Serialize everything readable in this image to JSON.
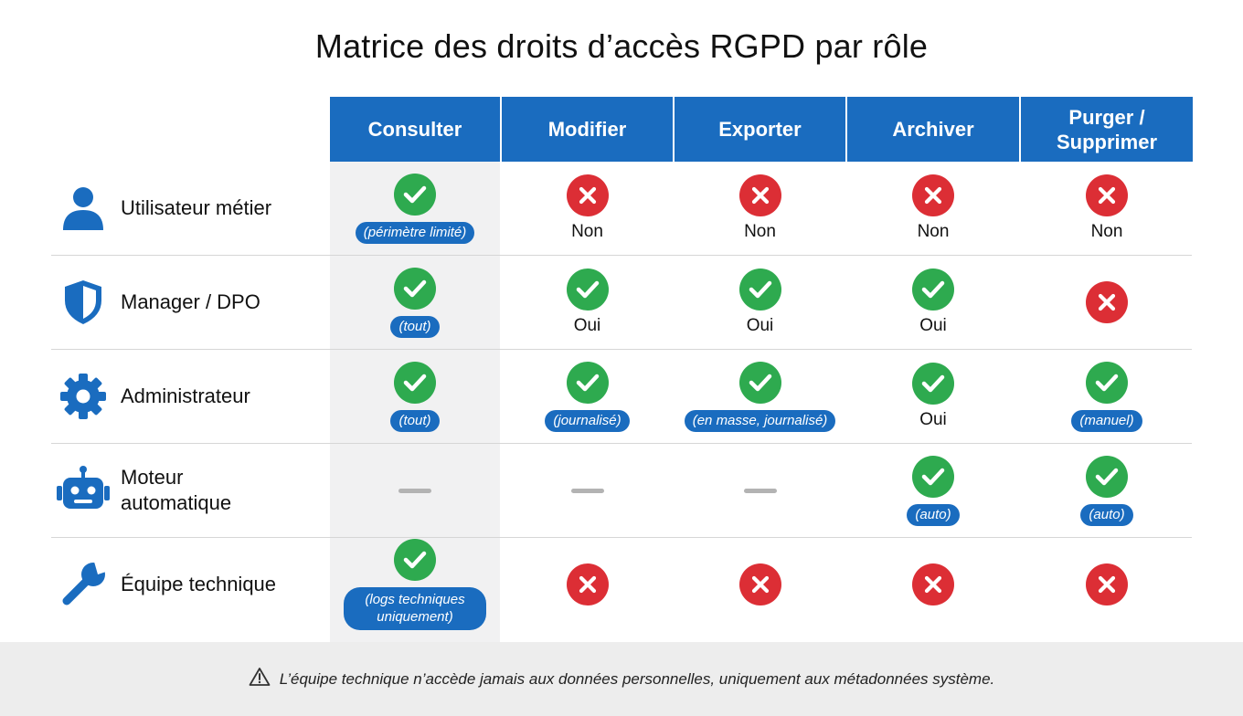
{
  "title": "Matrice des droits d’accès RGPD par rôle",
  "colors": {
    "header_blue": "#1a6cbf",
    "allowed_green": "#2eaa4f",
    "denied_red": "#dc2e35",
    "na_gray": "#b3b3b3",
    "shade_gray": "#f1f1f2"
  },
  "columns": [
    {
      "label": "Consulter"
    },
    {
      "label": "Modifier"
    },
    {
      "label": "Exporter"
    },
    {
      "label": "Archiver"
    },
    {
      "label": "Purger / Supprimer"
    }
  ],
  "rows": [
    {
      "role": "Utilisateur métier",
      "icon": "user-icon",
      "cells": [
        {
          "status": "allowed",
          "note": "(périmètre limité)"
        },
        {
          "status": "denied",
          "text": "Non"
        },
        {
          "status": "denied",
          "text": "Non"
        },
        {
          "status": "denied",
          "text": "Non"
        },
        {
          "status": "denied",
          "text": "Non"
        }
      ]
    },
    {
      "role": "Manager / DPO",
      "icon": "shield-icon",
      "cells": [
        {
          "status": "allowed",
          "note": "(tout)"
        },
        {
          "status": "allowed",
          "text": "Oui"
        },
        {
          "status": "allowed",
          "text": "Oui"
        },
        {
          "status": "allowed",
          "text": "Oui"
        },
        {
          "status": "denied"
        }
      ]
    },
    {
      "role": "Administrateur",
      "icon": "gear-icon",
      "cells": [
        {
          "status": "allowed",
          "note": "(tout)"
        },
        {
          "status": "allowed",
          "note": "(journalisé)"
        },
        {
          "status": "allowed",
          "note": "(en masse, journalisé)"
        },
        {
          "status": "allowed",
          "text": "Oui"
        },
        {
          "status": "allowed",
          "note": "(manuel)"
        }
      ]
    },
    {
      "role": "Moteur automatique",
      "icon": "robot-icon",
      "cells": [
        {
          "status": "na"
        },
        {
          "status": "na"
        },
        {
          "status": "na"
        },
        {
          "status": "allowed",
          "note": "(auto)"
        },
        {
          "status": "allowed",
          "note": "(auto)"
        }
      ]
    },
    {
      "role": "Équipe technique",
      "icon": "wrench-icon",
      "cells": [
        {
          "status": "allowed",
          "note": "(logs techniques uniquement)"
        },
        {
          "status": "denied"
        },
        {
          "status": "denied"
        },
        {
          "status": "denied"
        },
        {
          "status": "denied"
        }
      ]
    }
  ],
  "footer": {
    "icon": "warning-icon",
    "text": "L’équipe technique n’accède jamais aux données personnelles, uniquement aux métadonnées système."
  }
}
